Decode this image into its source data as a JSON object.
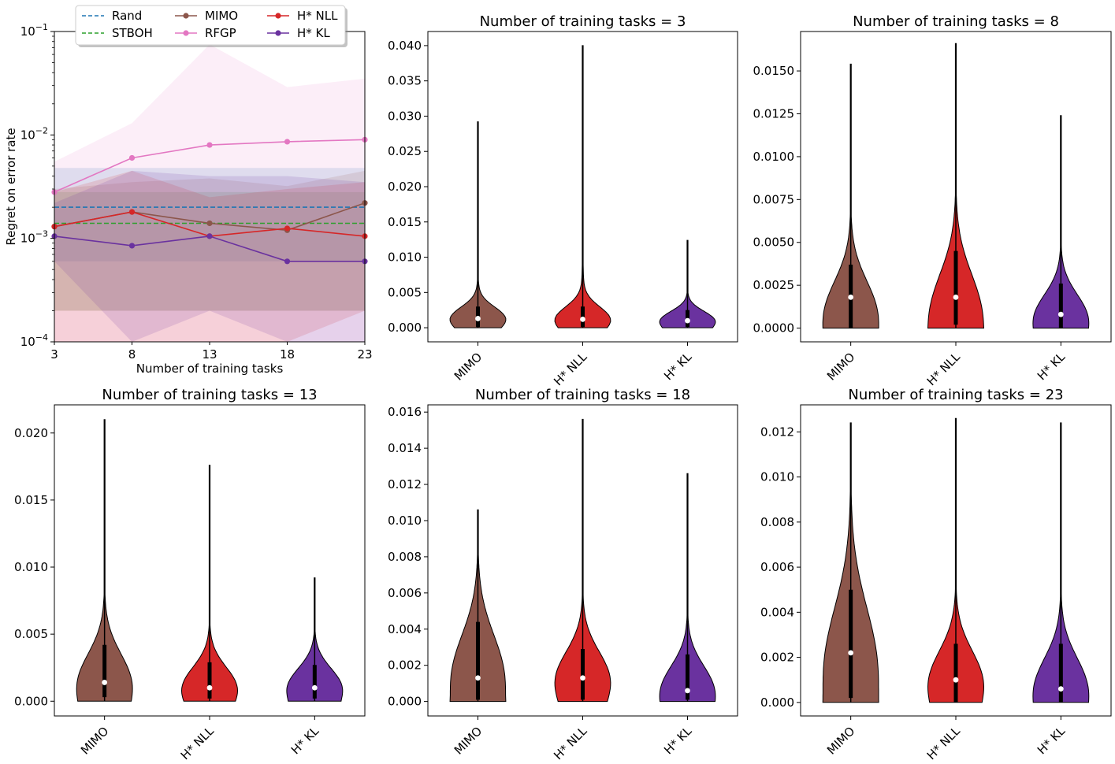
{
  "colors": {
    "Rand": "#1f77b4",
    "STBOH": "#2ca02c",
    "MIMO": "#8c564b",
    "RFGP": "#e377c2",
    "H* NLL": "#d62728",
    "H* KL": "#6a329f"
  },
  "chart_data": [
    {
      "type": "line",
      "title": "",
      "xlabel": "Number of training tasks",
      "ylabel": "Regret on error rate",
      "yscale": "log",
      "xlim": [
        3,
        23
      ],
      "ylim": [
        0.0001,
        0.1
      ],
      "x": [
        3,
        8,
        13,
        18,
        23
      ],
      "xticks": [
        "3",
        "8",
        "13",
        "18",
        "23"
      ],
      "yticks": [
        "10−4",
        "10−3",
        "10−2",
        "10−1"
      ],
      "legend": {
        "placement": "top-left",
        "columns": 3
      },
      "series": [
        {
          "name": "Rand",
          "style": "dashed",
          "values": [
            0.002,
            0.002,
            0.002,
            0.002,
            0.002
          ],
          "band": [
            [
              0.0006,
              0.0048
            ],
            [
              0.0006,
              0.0048
            ],
            [
              0.0006,
              0.0048
            ],
            [
              0.0006,
              0.0048
            ],
            [
              0.0006,
              0.0048
            ]
          ]
        },
        {
          "name": "STBOH",
          "style": "dashed",
          "values": [
            0.0014,
            0.0014,
            0.0014,
            0.0014,
            0.0014
          ],
          "band": [
            [
              0.0002,
              0.0028
            ],
            [
              0.0002,
              0.0028
            ],
            [
              0.0002,
              0.0028
            ],
            [
              0.0002,
              0.0028
            ],
            [
              0.0002,
              0.0028
            ]
          ]
        },
        {
          "name": "MIMO",
          "style": "solid",
          "values": [
            0.0013,
            0.0018,
            0.0014,
            0.0012,
            0.0022
          ],
          "band": [
            [
              0.0002,
              0.003
            ],
            [
              0.0002,
              0.0035
            ],
            [
              0.0002,
              0.0038
            ],
            [
              0.0002,
              0.0032
            ],
            [
              0.0002,
              0.0045
            ]
          ]
        },
        {
          "name": "RFGP",
          "style": "solid",
          "values": [
            0.0028,
            0.006,
            0.008,
            0.0086,
            0.009
          ],
          "band": [
            [
              0.0001,
              0.0055
            ],
            [
              0.0001,
              0.013
            ],
            [
              0.0001,
              0.075
            ],
            [
              0.0001,
              0.029
            ],
            [
              0.0001,
              0.035
            ]
          ]
        },
        {
          "name": "H* NLL",
          "style": "solid",
          "values": [
            0.0013,
            0.0018,
            0.00105,
            0.00125,
            0.00105
          ],
          "band": [
            [
              0.0001,
              0.0028
            ],
            [
              0.0001,
              0.0045
            ],
            [
              0.0001,
              0.0025
            ],
            [
              0.0001,
              0.003
            ],
            [
              0.0002,
              0.0035
            ]
          ]
        },
        {
          "name": "H* KL",
          "style": "solid",
          "values": [
            0.00105,
            0.00085,
            0.00105,
            0.0006,
            0.0006
          ],
          "band": [
            [
              0.0006,
              0.0022
            ],
            [
              0.0001,
              0.0045
            ],
            [
              0.0002,
              0.004
            ],
            [
              0.0001,
              0.004
            ],
            [
              0.0001,
              0.0035
            ]
          ]
        }
      ]
    },
    {
      "type": "violin",
      "title": "Number of training tasks = 3",
      "ylim": [
        -0.002,
        0.042
      ],
      "yticks": [
        0,
        0.005,
        0.01,
        0.015,
        0.02,
        0.025,
        0.03,
        0.035,
        0.04
      ],
      "ytick_labels": [
        "0.000",
        "0.005",
        "0.010",
        "0.015",
        "0.020",
        "0.025",
        "0.030",
        "0.035",
        "0.040"
      ],
      "categories": [
        "MIMO",
        "H* NLL",
        "H* KL"
      ],
      "series": [
        {
          "name": "MIMO",
          "max": 0.0292,
          "q1": 0.0001,
          "q3": 0.003,
          "median": 0.0013,
          "modes": [
            0.0013
          ]
        },
        {
          "name": "H* NLL",
          "max": 0.04,
          "q1": 0.0001,
          "q3": 0.003,
          "median": 0.0012,
          "modes": [
            0.0012
          ]
        },
        {
          "name": "H* KL",
          "max": 0.0124,
          "q1": 0.0001,
          "q3": 0.0025,
          "median": 0.001,
          "modes": [
            0.001
          ]
        }
      ]
    },
    {
      "type": "violin",
      "title": "Number of training tasks = 8",
      "ylim": [
        -0.0008,
        0.0173
      ],
      "yticks": [
        0,
        0.0025,
        0.005,
        0.0075,
        0.01,
        0.0125,
        0.015
      ],
      "ytick_labels": [
        "0.0000",
        "0.0025",
        "0.0050",
        "0.0075",
        "0.0100",
        "0.0125",
        "0.0150"
      ],
      "categories": [
        "MIMO",
        "H* NLL",
        "H* KL"
      ],
      "series": [
        {
          "name": "MIMO",
          "max": 0.0154,
          "q1": 0.0,
          "q3": 0.0037,
          "median": 0.0018,
          "modes": [
            0.0008
          ]
        },
        {
          "name": "H* NLL",
          "max": 0.0166,
          "q1": 0.0002,
          "q3": 0.0045,
          "median": 0.0018,
          "modes": [
            0.0008
          ]
        },
        {
          "name": "H* KL",
          "max": 0.0124,
          "q1": 0.0,
          "q3": 0.0026,
          "median": 0.0008,
          "modes": [
            0.0006
          ]
        }
      ]
    },
    {
      "type": "violin",
      "title": "Number of training tasks = 13",
      "ylim": [
        -0.0011,
        0.0221
      ],
      "yticks": [
        0,
        0.005,
        0.01,
        0.015,
        0.02
      ],
      "ytick_labels": [
        "0.000",
        "0.005",
        "0.010",
        "0.015",
        "0.020"
      ],
      "categories": [
        "MIMO",
        "H* NLL",
        "H* KL"
      ],
      "series": [
        {
          "name": "MIMO",
          "max": 0.021,
          "q1": 0.0003,
          "q3": 0.0042,
          "median": 0.0014,
          "modes": [
            0.0013
          ]
        },
        {
          "name": "H* NLL",
          "max": 0.0176,
          "q1": 0.0002,
          "q3": 0.0029,
          "median": 0.001,
          "modes": [
            0.001
          ]
        },
        {
          "name": "H* KL",
          "max": 0.0092,
          "q1": 0.0002,
          "q3": 0.0027,
          "median": 0.001,
          "modes": [
            0.001
          ]
        }
      ]
    },
    {
      "type": "violin",
      "title": "Number of training tasks = 18",
      "ylim": [
        -0.0008,
        0.0164
      ],
      "yticks": [
        0,
        0.002,
        0.004,
        0.006,
        0.008,
        0.01,
        0.012,
        0.014,
        0.016
      ],
      "ytick_labels": [
        "0.000",
        "0.002",
        "0.004",
        "0.006",
        "0.008",
        "0.010",
        "0.012",
        "0.014",
        "0.016"
      ],
      "categories": [
        "MIMO",
        "H* NLL",
        "H* KL"
      ],
      "series": [
        {
          "name": "MIMO",
          "max": 0.0106,
          "q1": 0.0001,
          "q3": 0.0044,
          "median": 0.0013,
          "modes": [
            0.0013
          ]
        },
        {
          "name": "H* NLL",
          "max": 0.0156,
          "q1": 0.0001,
          "q3": 0.0029,
          "median": 0.0013,
          "modes": [
            0.0012
          ]
        },
        {
          "name": "H* KL",
          "max": 0.0126,
          "q1": 0.0001,
          "q3": 0.0026,
          "median": 0.0006,
          "modes": [
            0.0006
          ]
        }
      ]
    },
    {
      "type": "violin",
      "title": "Number of training tasks = 23",
      "ylim": [
        -0.0006,
        0.0132
      ],
      "yticks": [
        0,
        0.002,
        0.004,
        0.006,
        0.008,
        0.01,
        0.012
      ],
      "ytick_labels": [
        "0.000",
        "0.002",
        "0.004",
        "0.006",
        "0.008",
        "0.010",
        "0.012"
      ],
      "categories": [
        "MIMO",
        "H* NLL",
        "H* KL"
      ],
      "series": [
        {
          "name": "MIMO",
          "max": 0.0124,
          "q1": 0.0002,
          "q3": 0.005,
          "median": 0.0022,
          "modes": [
            0.0015
          ]
        },
        {
          "name": "H* NLL",
          "max": 0.0126,
          "q1": 0.0,
          "q3": 0.0026,
          "median": 0.001,
          "modes": [
            0.0009
          ]
        },
        {
          "name": "H* KL",
          "max": 0.0124,
          "q1": 0.0,
          "q3": 0.0026,
          "median": 0.0006,
          "modes": [
            0.0006
          ]
        }
      ]
    }
  ]
}
